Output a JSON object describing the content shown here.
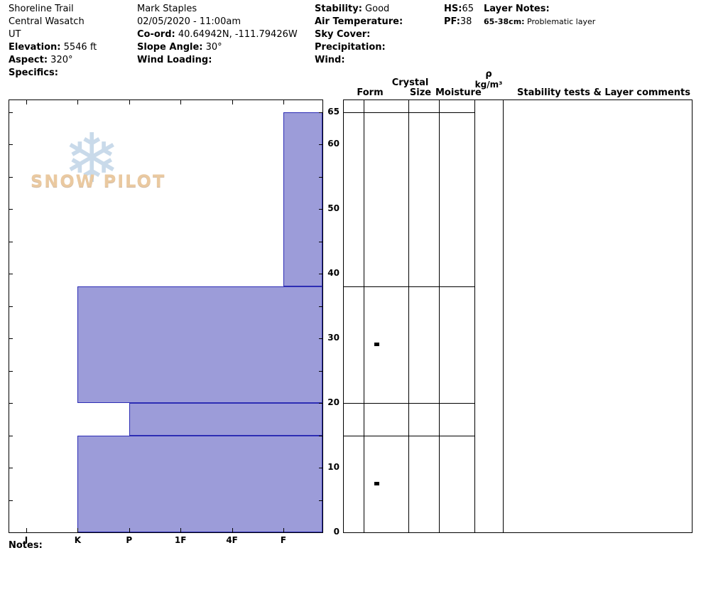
{
  "header": {
    "site": {
      "name": "Shoreline Trail",
      "region": "Central Wasatch",
      "state": "UT",
      "elevation_label": "Elevation:",
      "elevation_value": " 5546 ft",
      "aspect_label": "Aspect:",
      "aspect_value": " 320°",
      "specifics_label": "Specifics:"
    },
    "observer": {
      "name": "Mark Staples",
      "datetime": "02/05/2020 - 11:00am",
      "coord_label": "Co-ord:",
      "coord_value": " 40.64942N, -111.79426W",
      "slope_label": "Slope Angle:",
      "slope_value": " 30°",
      "wind_loading_label": "Wind Loading:"
    },
    "conditions": {
      "stability_label": "Stability:",
      "stability_value": " Good",
      "air_temp_label": "Air Temperature:",
      "sky_label": "Sky Cover:",
      "precip_label": "Precipitation:",
      "wind_label": "Wind:"
    },
    "totals": {
      "hs_label": "HS:",
      "hs_value": "65",
      "pf_label": "PF:",
      "pf_value": "38"
    },
    "layer_notes": {
      "title": "Layer Notes:",
      "entry_range": "65-38cm:",
      "entry_text": " Problematic layer"
    }
  },
  "logo": {
    "text": "SNOW PILOT",
    "snowflake": "❄"
  },
  "panel_headers": {
    "crystal": "Crystal",
    "form": "Form",
    "size": "Size",
    "moisture": "Moisture",
    "density_symbol": "ρ",
    "density_units": "kg/m³",
    "comments": "Stability tests & Layer comments"
  },
  "notes_label": "Notes:",
  "chart_data": {
    "type": "bar",
    "variant": "snowpilot-hardness-profile",
    "title": "Snow hardness profile",
    "orientation": "horizontal-bars-by-depth",
    "hardness_categories": [
      "I",
      "K",
      "P",
      "1F",
      "4F",
      "F"
    ],
    "depth_unit": "cm",
    "total_depth": 65,
    "depth_tick_labels": [
      65,
      60,
      50,
      40,
      30,
      20,
      10,
      0
    ],
    "layers": [
      {
        "top_cm": 65,
        "bottom_cm": 38,
        "hardness": "F"
      },
      {
        "top_cm": 38,
        "bottom_cm": 20,
        "hardness": "K"
      },
      {
        "top_cm": 20,
        "bottom_cm": 15,
        "hardness": "P"
      },
      {
        "top_cm": 15,
        "bottom_cm": 0,
        "hardness": "K"
      }
    ],
    "grain_form_marks_depth_cm": [
      29,
      7.5
    ],
    "colors": {
      "bar_fill": "#9c9cd9",
      "bar_stroke": "#2d2db4"
    }
  }
}
